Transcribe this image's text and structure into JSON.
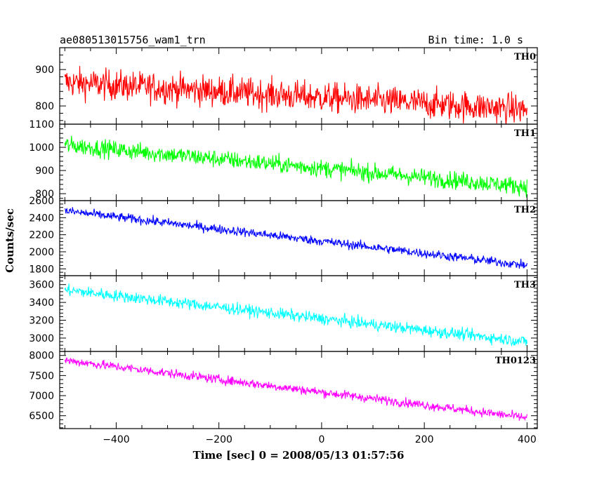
{
  "title_left": "ae080513015756_wam1_trn",
  "title_right": "Bin time: 1.0 s",
  "chart_data": {
    "type": "line",
    "xlabel": "Time [sec] 0 = 2008/05/13 01:57:56",
    "ylabel": "Counts/sec",
    "xlim": [
      -510,
      420
    ],
    "xticks": [
      -400,
      -200,
      0,
      200,
      400
    ],
    "x_start": -500,
    "x_end": 400,
    "bin_time": 1.0,
    "series": [
      {
        "name": "TH0",
        "color": "#ff0000",
        "ylim": [
          750,
          960
        ],
        "yticks": [
          800,
          900
        ],
        "start_value": 865,
        "end_value": 790,
        "noise": 35
      },
      {
        "name": "TH1",
        "color": "#00ff00",
        "ylim": [
          770,
          1100
        ],
        "yticks": [
          800,
          900,
          1000,
          1100
        ],
        "start_value": 1010,
        "end_value": 830,
        "noise": 32
      },
      {
        "name": "TH2",
        "color": "#0000ff",
        "ylim": [
          1720,
          2600
        ],
        "yticks": [
          1800,
          2000,
          2200,
          2400,
          2600
        ],
        "start_value": 2480,
        "end_value": 1840,
        "noise": 45
      },
      {
        "name": "TH3",
        "color": "#00ffff",
        "ylim": [
          2850,
          3700
        ],
        "yticks": [
          3000,
          3200,
          3400,
          3600
        ],
        "start_value": 3540,
        "end_value": 2960,
        "noise": 55
      },
      {
        "name": "TH0123",
        "color": "#ff00ff",
        "ylim": [
          6180,
          8100
        ],
        "yticks": [
          6500,
          7000,
          7500,
          8000
        ],
        "start_value": 7880,
        "end_value": 6450,
        "noise": 95
      }
    ]
  }
}
